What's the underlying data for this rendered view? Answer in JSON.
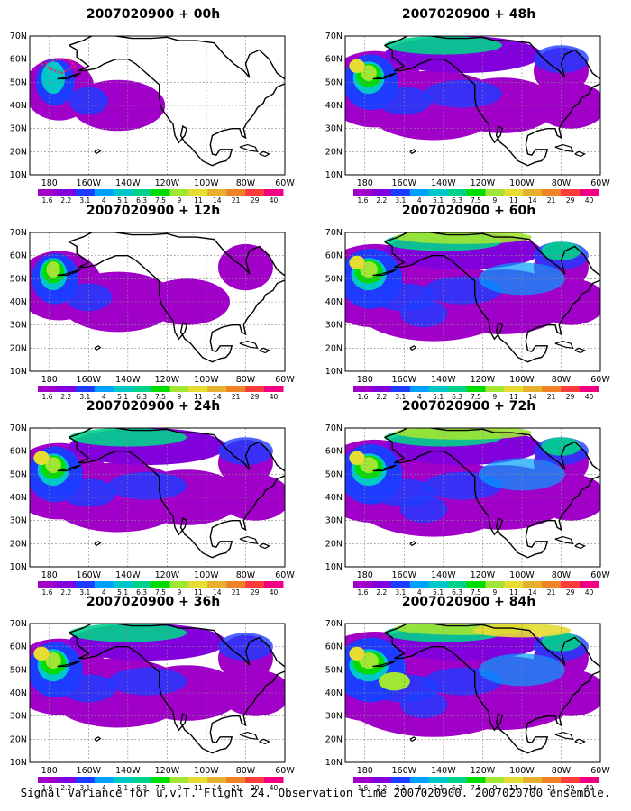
{
  "map": {
    "lat_labels": [
      "70N",
      "60N",
      "50N",
      "40N",
      "30N",
      "20N",
      "10N"
    ],
    "lon_labels": [
      "180",
      "160W",
      "140W",
      "120W",
      "100W",
      "80W",
      "60W"
    ],
    "colorbar_labels": [
      "1.6",
      "2.2",
      "3.1",
      "4",
      "5.1",
      "6.3",
      "7.5",
      "9",
      "11",
      "14",
      "21",
      "29",
      "40"
    ],
    "colorbar_colors": [
      "#a000c8",
      "#8200dc",
      "#1e3cff",
      "#00a0ff",
      "#00c8c8",
      "#00d28c",
      "#00dc00",
      "#a0e632",
      "#e6dc32",
      "#e6af2d",
      "#f08228",
      "#fa3c3c",
      "#f00082"
    ]
  },
  "panels": [
    {
      "title": "2007020900 + 00h",
      "level": 1
    },
    {
      "title": "2007020900 + 12h",
      "level": 2
    },
    {
      "title": "2007020900 + 24h",
      "level": 3
    },
    {
      "title": "2007020900 + 36h",
      "level": 3
    },
    {
      "title": "2007020900 + 48h",
      "level": 3
    },
    {
      "title": "2007020900 + 60h",
      "level": 4
    },
    {
      "title": "2007020900 + 72h",
      "level": 4
    },
    {
      "title": "2007020900 + 84h",
      "level": 5
    }
  ],
  "footer": "Signal Variance for u,v,T. Flight 24. Observation time 2007020900. 2007020700 ensemble."
}
